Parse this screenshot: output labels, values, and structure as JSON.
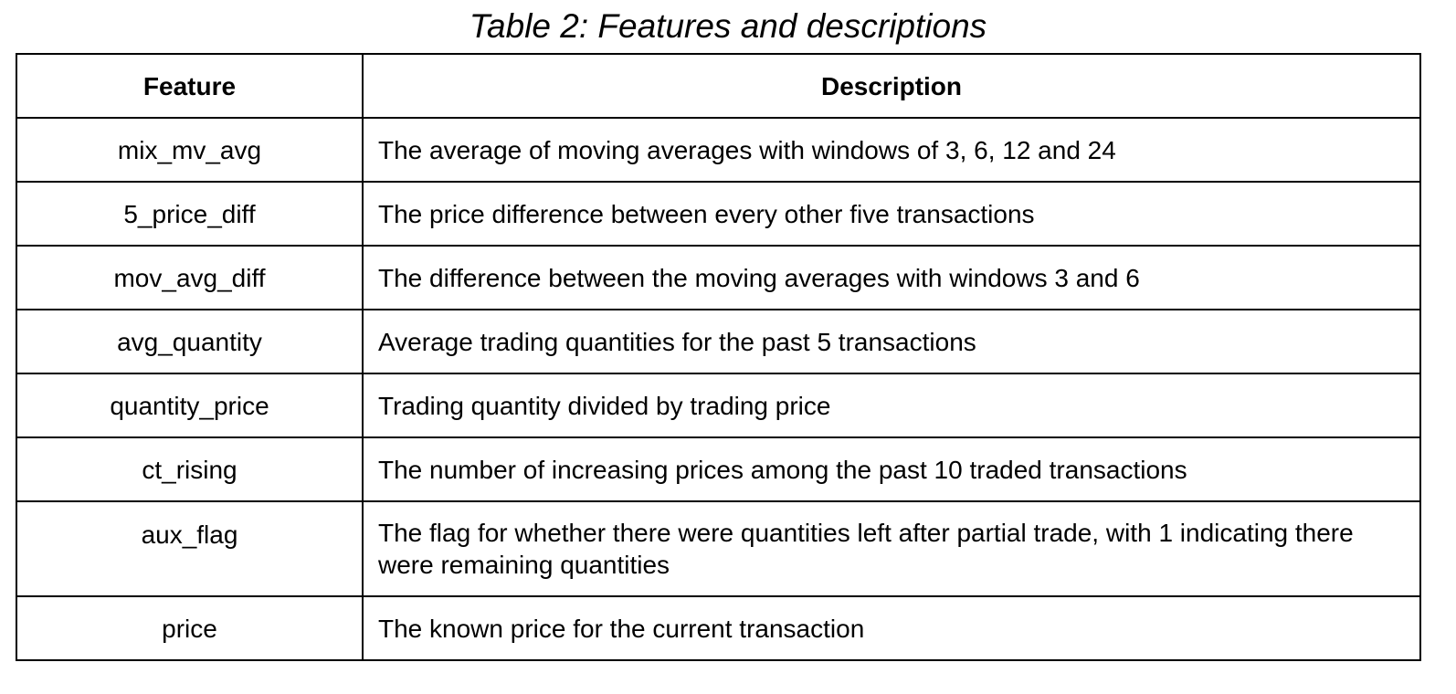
{
  "caption": "Table 2: Features and descriptions",
  "table": {
    "headers": {
      "feature": "Feature",
      "description": "Description"
    },
    "rows": [
      {
        "feature": "mix_mv_avg",
        "description": "The average of moving averages with windows of 3, 6, 12 and 24"
      },
      {
        "feature": "5_price_diff",
        "description": "The price difference between every other five transactions"
      },
      {
        "feature": "mov_avg_diff",
        "description": "The difference between the moving averages with windows 3 and 6"
      },
      {
        "feature": "avg_quantity",
        "description": "Average trading quantities for the past 5 transactions"
      },
      {
        "feature": "quantity_price",
        "description": "Trading quantity divided by trading price"
      },
      {
        "feature": "ct_rising",
        "description": "The number of increasing prices among the past 10 traded transactions"
      },
      {
        "feature": "aux_flag",
        "description": "The flag for whether there were quantities left after partial trade, with 1 indicating there were remaining quantities"
      },
      {
        "feature": "price",
        "description": "The known price for the current transaction"
      }
    ]
  }
}
